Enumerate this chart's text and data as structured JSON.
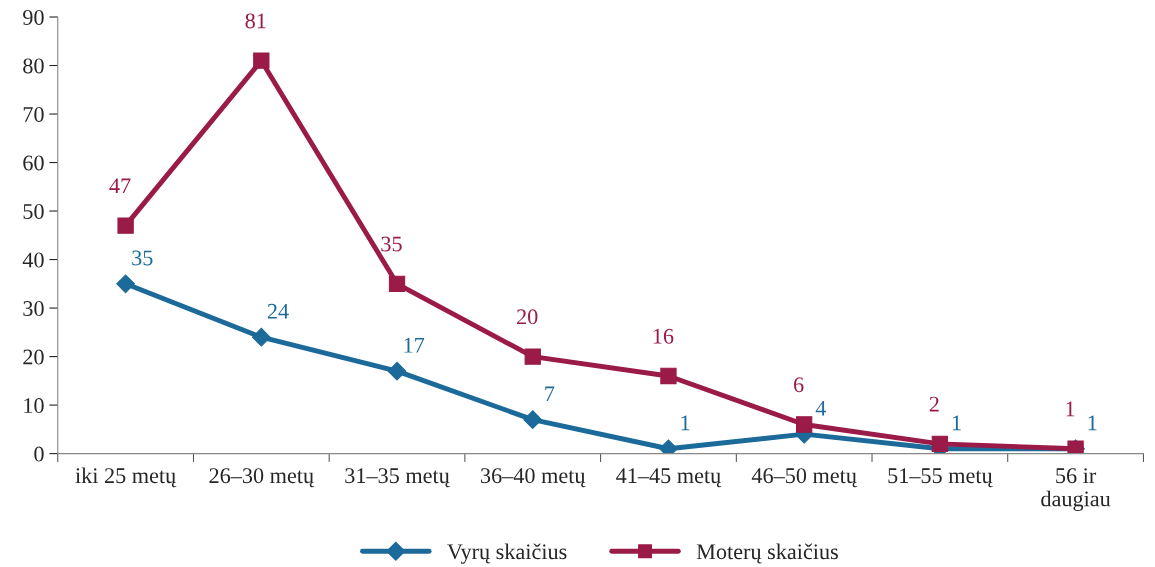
{
  "chart_data": {
    "type": "line",
    "categories": [
      "iki 25 metų",
      "26–30 metų",
      "31–35 metų",
      "36–40 metų",
      "41–45 metų",
      "46–50 metų",
      "51–55 metų",
      "56 ir\ndaugiau"
    ],
    "series": [
      {
        "name": "Vyrų skaičius",
        "color": "#1b6a99",
        "marker": "diamond",
        "values": [
          35,
          24,
          17,
          7,
          1,
          4,
          1,
          1
        ]
      },
      {
        "name": "Moterų skaičius",
        "color": "#9a1a48",
        "marker": "square",
        "values": [
          47,
          81,
          35,
          20,
          16,
          6,
          2,
          1
        ]
      }
    ],
    "ylim": [
      0,
      90
    ],
    "yticks": [
      0,
      10,
      20,
      30,
      40,
      50,
      60,
      70,
      80,
      90
    ],
    "grid": false,
    "legend": "bottom",
    "data_labels": true,
    "line_style": "solid"
  }
}
